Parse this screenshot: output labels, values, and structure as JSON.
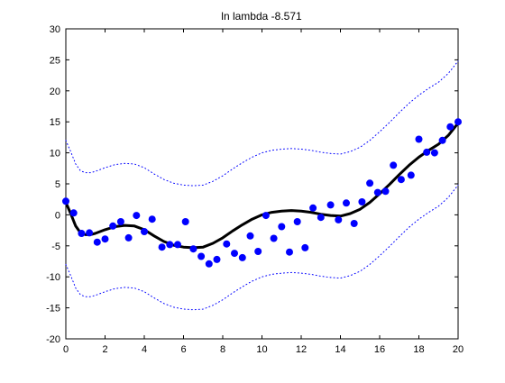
{
  "chart_data": {
    "type": "scatter",
    "title": "ln lambda -8.571",
    "xlabel": "",
    "ylabel": "",
    "xlim": [
      0,
      20
    ],
    "ylim": [
      -20,
      30
    ],
    "xticks": [
      0,
      2,
      4,
      6,
      8,
      10,
      12,
      14,
      16,
      18,
      20
    ],
    "yticks": [
      -20,
      -15,
      -10,
      -5,
      0,
      5,
      10,
      15,
      20,
      25,
      30
    ],
    "grid": false,
    "legend": "none",
    "colors": {
      "points": "#0000ff",
      "fit": "#000000",
      "band": "#0000ff",
      "axes": "#000000"
    },
    "series": [
      {
        "kind": "points",
        "x": [
          0.0,
          0.4,
          0.8,
          1.2,
          1.6,
          2.0,
          2.4,
          2.8,
          3.2,
          3.6,
          4.0,
          4.4,
          4.9,
          5.3,
          5.7,
          6.1,
          6.5,
          6.9,
          7.3,
          7.7,
          8.2,
          8.6,
          9.0,
          9.4,
          9.8,
          10.2,
          10.6,
          11.0,
          11.4,
          11.8,
          12.2,
          12.6,
          13.0,
          13.5,
          13.9,
          14.3,
          14.7,
          15.1,
          15.5,
          15.9,
          16.3,
          16.7,
          17.1,
          17.6,
          18.0,
          18.4,
          18.8,
          19.2,
          19.6,
          20.0
        ],
        "y": [
          2.2,
          0.3,
          -3.0,
          -2.9,
          -4.4,
          -3.9,
          -1.8,
          -1.1,
          -3.7,
          -0.1,
          -2.7,
          -0.7,
          -5.2,
          -4.8,
          -4.8,
          -1.1,
          -5.5,
          -6.7,
          -7.9,
          -7.2,
          -4.7,
          -6.2,
          -6.9,
          -3.4,
          -5.9,
          -0.1,
          -3.8,
          -1.9,
          -6.0,
          -1.1,
          -5.3,
          1.1,
          -0.4,
          1.6,
          -0.8,
          1.9,
          -1.4,
          2.1,
          5.1,
          3.6,
          3.8,
          8.0,
          5.7,
          6.4,
          12.2,
          10.1,
          10.0,
          12.0,
          14.2,
          15.0
        ]
      },
      {
        "kind": "fit",
        "x": [
          0,
          0.25,
          0.5,
          0.75,
          1.0,
          1.25,
          1.5,
          2.0,
          2.5,
          3.0,
          3.5,
          4.0,
          4.5,
          5.0,
          5.5,
          6.0,
          6.5,
          7.0,
          7.5,
          8.0,
          8.5,
          9.0,
          9.5,
          10.0,
          10.5,
          11.0,
          11.5,
          12.0,
          12.5,
          13.0,
          13.5,
          14.0,
          14.5,
          15.0,
          15.5,
          16.0,
          16.5,
          17.0,
          17.5,
          18.0,
          18.5,
          19.0,
          19.5,
          20.0
        ],
        "y": [
          2.0,
          0.2,
          -1.8,
          -2.9,
          -3.2,
          -3.2,
          -3.0,
          -2.4,
          -1.9,
          -1.7,
          -1.8,
          -2.4,
          -3.4,
          -4.3,
          -4.9,
          -5.2,
          -5.3,
          -5.2,
          -4.6,
          -3.7,
          -2.6,
          -1.6,
          -0.7,
          -0.0,
          0.4,
          0.6,
          0.7,
          0.6,
          0.4,
          0.1,
          -0.1,
          -0.2,
          0.2,
          0.9,
          2.0,
          3.4,
          4.9,
          6.5,
          8.0,
          9.3,
          10.4,
          11.4,
          12.8,
          14.8
        ]
      },
      {
        "kind": "upper-bound",
        "x": [
          0,
          0.25,
          0.5,
          0.75,
          1.0,
          1.25,
          1.5,
          2.0,
          2.5,
          3.0,
          3.5,
          4.0,
          4.5,
          5.0,
          5.5,
          6.0,
          6.5,
          7.0,
          7.5,
          8.0,
          8.5,
          9.0,
          9.5,
          10.0,
          10.5,
          11.0,
          11.5,
          12.0,
          12.5,
          13.0,
          13.5,
          14.0,
          14.5,
          15.0,
          15.5,
          16.0,
          16.5,
          17.0,
          17.5,
          18.0,
          18.5,
          19.0,
          19.5,
          20.0
        ],
        "y": [
          12.0,
          10.2,
          8.2,
          7.1,
          6.8,
          6.8,
          7.0,
          7.6,
          8.1,
          8.3,
          8.2,
          7.6,
          6.6,
          5.7,
          5.1,
          4.8,
          4.7,
          4.8,
          5.4,
          6.3,
          7.4,
          8.4,
          9.3,
          10.0,
          10.4,
          10.6,
          10.7,
          10.6,
          10.4,
          10.1,
          9.9,
          9.8,
          10.2,
          10.9,
          12.0,
          13.4,
          14.9,
          16.5,
          18.0,
          19.3,
          20.4,
          21.4,
          22.8,
          24.8
        ]
      },
      {
        "kind": "lower-bound",
        "x": [
          0,
          0.25,
          0.5,
          0.75,
          1.0,
          1.25,
          1.5,
          2.0,
          2.5,
          3.0,
          3.5,
          4.0,
          4.5,
          5.0,
          5.5,
          6.0,
          6.5,
          7.0,
          7.5,
          8.0,
          8.5,
          9.0,
          9.5,
          10.0,
          10.5,
          11.0,
          11.5,
          12.0,
          12.5,
          13.0,
          13.5,
          14.0,
          14.5,
          15.0,
          15.5,
          16.0,
          16.5,
          17.0,
          17.5,
          18.0,
          18.5,
          19.0,
          19.5,
          20.0
        ],
        "y": [
          -8.0,
          -9.8,
          -11.8,
          -12.9,
          -13.2,
          -13.2,
          -13.0,
          -12.4,
          -11.9,
          -11.7,
          -11.8,
          -12.4,
          -13.4,
          -14.3,
          -14.9,
          -15.2,
          -15.3,
          -15.2,
          -14.6,
          -13.7,
          -12.6,
          -11.6,
          -10.7,
          -10.0,
          -9.6,
          -9.4,
          -9.3,
          -9.4,
          -9.6,
          -9.9,
          -10.1,
          -10.2,
          -9.8,
          -9.1,
          -8.0,
          -6.6,
          -5.1,
          -3.5,
          -2.0,
          -0.7,
          0.4,
          1.4,
          2.8,
          4.8
        ]
      }
    ]
  }
}
